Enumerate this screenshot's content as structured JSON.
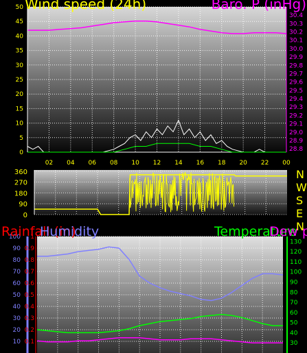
{
  "chart_data": [
    {
      "panel": "wind-pressure",
      "type": "line",
      "title_left": "Wind speed (24h)",
      "title_right": "Baro. P (inHg)",
      "colors": {
        "title_left": "#ffff00",
        "title_right": "#ff00ff",
        "gust": "#ffffff",
        "average": "#00ff00",
        "pressure": "#ff00ff",
        "grid": "#ffffff",
        "axis": "#ffffff"
      },
      "x_ticks": [
        "02",
        "04",
        "06",
        "08",
        "10",
        "12",
        "14",
        "16",
        "18",
        "20",
        "22",
        "00"
      ],
      "y_left_ticks": [
        "0",
        "5",
        "10",
        "15",
        "20",
        "25",
        "30",
        "35",
        "40",
        "45",
        "50"
      ],
      "y_left_range": [
        0,
        50
      ],
      "y_right_ticks": [
        "28.8",
        "28.9",
        "29.0",
        "29.1",
        "29.2",
        "29.3",
        "29.4",
        "29.5",
        "29.6",
        "29.7",
        "29.8",
        "29.9",
        "30.0",
        "30.1",
        "30.2",
        "30.3",
        "30.4"
      ],
      "y_right_range": [
        28.76,
        30.5
      ],
      "x_range": [
        0,
        24
      ],
      "series": [
        {
          "id": "pressure",
          "axis": "right",
          "x": [
            0,
            1,
            2,
            3,
            4,
            5,
            6,
            7,
            8,
            9,
            10,
            11,
            12,
            13,
            14,
            15,
            16,
            17,
            18,
            19,
            20,
            21,
            22,
            23,
            24
          ],
          "y": [
            30.22,
            30.22,
            30.22,
            30.23,
            30.24,
            30.25,
            30.27,
            30.29,
            30.31,
            30.32,
            30.33,
            30.33,
            30.32,
            30.3,
            30.28,
            30.26,
            30.23,
            30.21,
            30.19,
            30.18,
            30.18,
            30.19,
            30.19,
            30.19,
            30.18
          ]
        },
        {
          "id": "gust",
          "axis": "left",
          "x": [
            0,
            0.5,
            1,
            1.5,
            2,
            7,
            8,
            8.5,
            9,
            9.5,
            10,
            10.5,
            11,
            11.5,
            12,
            12.5,
            13,
            13.5,
            14,
            14.5,
            15,
            15.5,
            16,
            16.5,
            17,
            17.5,
            18,
            18.5,
            19,
            20,
            21,
            21.5,
            22,
            24
          ],
          "y": [
            2,
            1,
            2,
            0,
            0,
            0,
            1,
            2,
            3,
            5,
            6,
            4,
            7,
            5,
            8,
            6,
            9,
            7,
            11,
            6,
            8,
            5,
            7,
            4,
            6,
            3,
            4,
            2,
            1,
            0,
            0,
            1,
            0,
            0
          ]
        },
        {
          "id": "average",
          "axis": "left",
          "x": [
            0,
            8,
            9,
            10,
            11,
            12,
            13,
            14,
            15,
            16,
            17,
            18,
            19,
            24
          ],
          "y": [
            0,
            0,
            1,
            2,
            2,
            3,
            3,
            3,
            3,
            2,
            2,
            1,
            0,
            0
          ]
        }
      ]
    },
    {
      "panel": "wind-direction",
      "type": "line",
      "compass_labels": [
        "N",
        "W",
        "S",
        "E",
        "N"
      ],
      "y_ticks": [
        "360",
        "270",
        "180",
        "90",
        "0"
      ],
      "y_range": [
        0,
        370
      ],
      "x_range": [
        0,
        24
      ],
      "colors": {
        "direction": "#ffff00",
        "compass": "#ffff00"
      },
      "series": [
        {
          "id": "direction",
          "x": [
            0,
            6,
            6.3,
            9,
            9.1,
            19,
            19.1,
            24
          ],
          "y": [
            45,
            45,
            0,
            0,
            330,
            330,
            320,
            320
          ]
        }
      ]
    },
    {
      "panel": "rain-humidity-temp",
      "type": "line",
      "labels": {
        "rainfall": "Rainfall (in)",
        "humidity": "Humidity",
        "temperature": "Temperature",
        "dewpoint": "Dew point"
      },
      "colors": {
        "rainfall": "#ff0000",
        "humidity": "#8080ff",
        "temperature": "#00ff00",
        "dewpoint": "#ff00ff"
      },
      "y_humidity_ticks": [
        "100",
        "90",
        "80",
        "70",
        "60",
        "50",
        "40",
        "30",
        "20",
        "10"
      ],
      "y_humidity_range": [
        0,
        100
      ],
      "y_rain_ticks": [
        "1",
        "0.9",
        "0.8",
        "0.7",
        "0.6",
        "0.5",
        "0.4",
        "0.3",
        "0.2",
        "0.1"
      ],
      "y_rain_range": [
        0,
        1
      ],
      "y_temp_ticks": [
        "130",
        "120",
        "110",
        "100",
        "90",
        "80",
        "70",
        "60",
        "50",
        "40",
        "30"
      ],
      "y_temp_range": [
        20,
        135
      ],
      "x_range": [
        0,
        24
      ],
      "series": [
        {
          "id": "humidity",
          "axis": "humidity",
          "x": [
            0,
            1,
            2,
            3,
            4,
            5,
            6,
            7,
            8,
            9,
            10,
            11,
            12,
            13,
            14,
            15,
            16,
            17,
            18,
            19,
            20,
            21,
            22,
            23,
            24
          ],
          "y": [
            83,
            83,
            84,
            85,
            87,
            88,
            89,
            91,
            90,
            80,
            66,
            60,
            56,
            53,
            51,
            49,
            46,
            45,
            47,
            52,
            58,
            64,
            68,
            68,
            67
          ]
        },
        {
          "id": "temperature",
          "axis": "temp",
          "x": [
            0,
            1,
            2,
            3,
            4,
            5,
            6,
            7,
            8,
            9,
            10,
            11,
            12,
            13,
            14,
            15,
            16,
            17,
            18,
            19,
            20,
            21,
            22,
            23,
            24
          ],
          "y": [
            43,
            42,
            41,
            40,
            40,
            40,
            40,
            41,
            42,
            44,
            47,
            49,
            51,
            52,
            53,
            54,
            56,
            57,
            58,
            57,
            55,
            52,
            49,
            47,
            47
          ]
        },
        {
          "id": "dewpoint",
          "axis": "temp",
          "x": [
            0,
            1,
            2,
            3,
            4,
            5,
            6,
            7,
            8,
            9,
            10,
            11,
            12,
            13,
            14,
            15,
            16,
            17,
            18,
            19,
            20,
            21,
            22,
            23,
            24
          ],
          "y": [
            32,
            31,
            31,
            31,
            32,
            32,
            33,
            34,
            35,
            35,
            35,
            34,
            33,
            33,
            33,
            34,
            34,
            34,
            33,
            32,
            31,
            30,
            30,
            30,
            30
          ]
        }
      ]
    }
  ]
}
